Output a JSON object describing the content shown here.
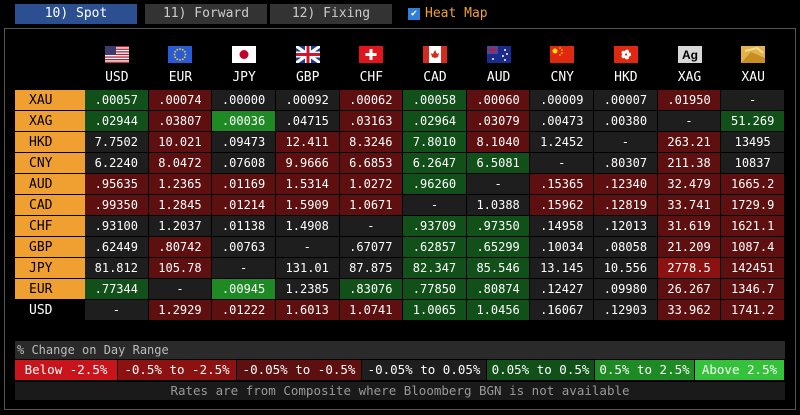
{
  "tabs": [
    {
      "label": "10) Spot",
      "selected": true
    },
    {
      "label": "11) Forward",
      "selected": false
    },
    {
      "label": "12) Fixing",
      "selected": false
    }
  ],
  "heat_map_toggle": {
    "label": "Heat Map",
    "checked": true
  },
  "table": {
    "columns": [
      {
        "code": "USD",
        "flag": "us"
      },
      {
        "code": "EUR",
        "flag": "eu"
      },
      {
        "code": "JPY",
        "flag": "jp"
      },
      {
        "code": "GBP",
        "flag": "gb"
      },
      {
        "code": "CHF",
        "flag": "ch"
      },
      {
        "code": "CAD",
        "flag": "ca"
      },
      {
        "code": "AUD",
        "flag": "au"
      },
      {
        "code": "CNY",
        "flag": "cn"
      },
      {
        "code": "HKD",
        "flag": "hk"
      },
      {
        "code": "XAG",
        "flag": "ag",
        "icon_text": "Ag"
      },
      {
        "code": "XAU",
        "flag": "au-metal"
      }
    ],
    "rows": [
      {
        "label": "XAU",
        "label_highlight": true,
        "cells": [
          {
            "text": ".00057",
            "level": 4
          },
          {
            "text": ".00074",
            "level": 2
          },
          {
            "text": ".00000",
            "level": 3
          },
          {
            "text": ".00092",
            "level": 3
          },
          {
            "text": ".00062",
            "level": 2
          },
          {
            "text": ".00058",
            "level": 4
          },
          {
            "text": ".00060",
            "level": 2
          },
          {
            "text": ".00009",
            "level": 3
          },
          {
            "text": ".00007",
            "level": 3
          },
          {
            "text": ".01950",
            "level": 2
          },
          {
            "text": "-",
            "level": 3
          }
        ]
      },
      {
        "label": "XAG",
        "label_highlight": true,
        "cells": [
          {
            "text": ".02944",
            "level": 4
          },
          {
            "text": ".03807",
            "level": 2
          },
          {
            "text": ".00036",
            "level": 5
          },
          {
            "text": ".04715",
            "level": 3
          },
          {
            "text": ".03163",
            "level": 2
          },
          {
            "text": ".02964",
            "level": 4
          },
          {
            "text": ".03079",
            "level": 2
          },
          {
            "text": ".00473",
            "level": 3
          },
          {
            "text": ".00380",
            "level": 3
          },
          {
            "text": "-",
            "level": 3
          },
          {
            "text": "51.269",
            "level": 4
          }
        ]
      },
      {
        "label": "HKD",
        "label_highlight": true,
        "cells": [
          {
            "text": "7.7502",
            "level": 3
          },
          {
            "text": "10.021",
            "level": 2
          },
          {
            "text": ".09473",
            "level": 3
          },
          {
            "text": "12.411",
            "level": 2
          },
          {
            "text": "8.3246",
            "level": 2
          },
          {
            "text": "7.8010",
            "level": 4
          },
          {
            "text": "8.1040",
            "level": 2
          },
          {
            "text": "1.2452",
            "level": 3
          },
          {
            "text": "-",
            "level": 3
          },
          {
            "text": "263.21",
            "level": 2
          },
          {
            "text": "13495",
            "level": 3
          }
        ]
      },
      {
        "label": "CNY",
        "label_highlight": true,
        "cells": [
          {
            "text": "6.2240",
            "level": 3
          },
          {
            "text": "8.0472",
            "level": 2
          },
          {
            "text": ".07608",
            "level": 3
          },
          {
            "text": "9.9666",
            "level": 2
          },
          {
            "text": "6.6853",
            "level": 2
          },
          {
            "text": "6.2647",
            "level": 4
          },
          {
            "text": "6.5081",
            "level": 4
          },
          {
            "text": "-",
            "level": 3
          },
          {
            "text": ".80307",
            "level": 3
          },
          {
            "text": "211.38",
            "level": 2
          },
          {
            "text": "10837",
            "level": 3
          }
        ]
      },
      {
        "label": "AUD",
        "label_highlight": true,
        "cells": [
          {
            "text": ".95635",
            "level": 2
          },
          {
            "text": "1.2365",
            "level": 2
          },
          {
            "text": ".01169",
            "level": 2
          },
          {
            "text": "1.5314",
            "level": 2
          },
          {
            "text": "1.0272",
            "level": 2
          },
          {
            "text": ".96260",
            "level": 4
          },
          {
            "text": "-",
            "level": 3
          },
          {
            "text": ".15365",
            "level": 2
          },
          {
            "text": ".12340",
            "level": 2
          },
          {
            "text": "32.479",
            "level": 2
          },
          {
            "text": "1665.2",
            "level": 2
          }
        ]
      },
      {
        "label": "CAD",
        "label_highlight": true,
        "cells": [
          {
            "text": ".99350",
            "level": 2
          },
          {
            "text": "1.2845",
            "level": 2
          },
          {
            "text": ".01214",
            "level": 2
          },
          {
            "text": "1.5909",
            "level": 2
          },
          {
            "text": "1.0671",
            "level": 2
          },
          {
            "text": "-",
            "level": 3
          },
          {
            "text": "1.0388",
            "level": 3
          },
          {
            "text": ".15962",
            "level": 2
          },
          {
            "text": ".12819",
            "level": 2
          },
          {
            "text": "33.741",
            "level": 2
          },
          {
            "text": "1729.9",
            "level": 2
          }
        ]
      },
      {
        "label": "CHF",
        "label_highlight": true,
        "cells": [
          {
            "text": ".93100",
            "level": 3
          },
          {
            "text": "1.2037",
            "level": 3
          },
          {
            "text": ".01138",
            "level": 3
          },
          {
            "text": "1.4908",
            "level": 3
          },
          {
            "text": "-",
            "level": 3
          },
          {
            "text": ".93709",
            "level": 4
          },
          {
            "text": ".97350",
            "level": 4
          },
          {
            "text": ".14958",
            "level": 3
          },
          {
            "text": ".12013",
            "level": 3
          },
          {
            "text": "31.619",
            "level": 2
          },
          {
            "text": "1621.1",
            "level": 2
          }
        ]
      },
      {
        "label": "GBP",
        "label_highlight": true,
        "cells": [
          {
            "text": ".62449",
            "level": 3
          },
          {
            "text": ".80742",
            "level": 2
          },
          {
            "text": ".00763",
            "level": 3
          },
          {
            "text": "-",
            "level": 3
          },
          {
            "text": ".67077",
            "level": 3
          },
          {
            "text": ".62857",
            "level": 4
          },
          {
            "text": ".65299",
            "level": 4
          },
          {
            "text": ".10034",
            "level": 3
          },
          {
            "text": ".08058",
            "level": 3
          },
          {
            "text": "21.209",
            "level": 2
          },
          {
            "text": "1087.4",
            "level": 2
          }
        ]
      },
      {
        "label": "JPY",
        "label_highlight": true,
        "cells": [
          {
            "text": "81.812",
            "level": 3
          },
          {
            "text": "105.78",
            "level": 2
          },
          {
            "text": "-",
            "level": 3
          },
          {
            "text": "131.01",
            "level": 3
          },
          {
            "text": "87.875",
            "level": 3
          },
          {
            "text": "82.347",
            "level": 4
          },
          {
            "text": "85.546",
            "level": 4
          },
          {
            "text": "13.145",
            "level": 3
          },
          {
            "text": "10.556",
            "level": 3
          },
          {
            "text": "2778.5",
            "level": 1
          },
          {
            "text": "142451",
            "level": 2
          }
        ]
      },
      {
        "label": "EUR",
        "label_highlight": true,
        "cells": [
          {
            "text": ".77344",
            "level": 4
          },
          {
            "text": "-",
            "level": 3
          },
          {
            "text": ".00945",
            "level": 5
          },
          {
            "text": "1.2385",
            "level": 3
          },
          {
            "text": ".83076",
            "level": 4
          },
          {
            "text": ".77850",
            "level": 4
          },
          {
            "text": ".80874",
            "level": 4
          },
          {
            "text": ".12427",
            "level": 3
          },
          {
            "text": ".09980",
            "level": 3
          },
          {
            "text": "26.267",
            "level": 2
          },
          {
            "text": "1346.7",
            "level": 2
          }
        ]
      },
      {
        "label": "USD",
        "label_highlight": false,
        "cells": [
          {
            "text": "-",
            "level": 3
          },
          {
            "text": "1.2929",
            "level": 2
          },
          {
            "text": ".01222",
            "level": 2
          },
          {
            "text": "1.6013",
            "level": 2
          },
          {
            "text": "1.0741",
            "level": 2
          },
          {
            "text": "1.0065",
            "level": 4
          },
          {
            "text": "1.0456",
            "level": 4
          },
          {
            "text": ".16067",
            "level": 3
          },
          {
            "text": ".12903",
            "level": 3
          },
          {
            "text": "33.962",
            "level": 2
          },
          {
            "text": "1741.2",
            "level": 2
          }
        ]
      }
    ]
  },
  "heat_legend": {
    "title": "% Change on Day Range",
    "levels": [
      {
        "label": "Below -2.5%",
        "color": "#c8141a"
      },
      {
        "label": "-0.5% to -2.5%",
        "color": "#8c1212"
      },
      {
        "label": "-0.05% to -0.5%",
        "color": "#5e0f0f"
      },
      {
        "label": "-0.05% to 0.05%",
        "color": "#1e1e1e"
      },
      {
        "label": "0.05% to 0.5%",
        "color": "#12501a"
      },
      {
        "label": "0.5% to 2.5%",
        "color": "#1e8a24"
      },
      {
        "label": "Above 2.5%",
        "color": "#33c23a"
      }
    ]
  },
  "footer": "Rates are from Composite where Bloomberg BGN is not available"
}
